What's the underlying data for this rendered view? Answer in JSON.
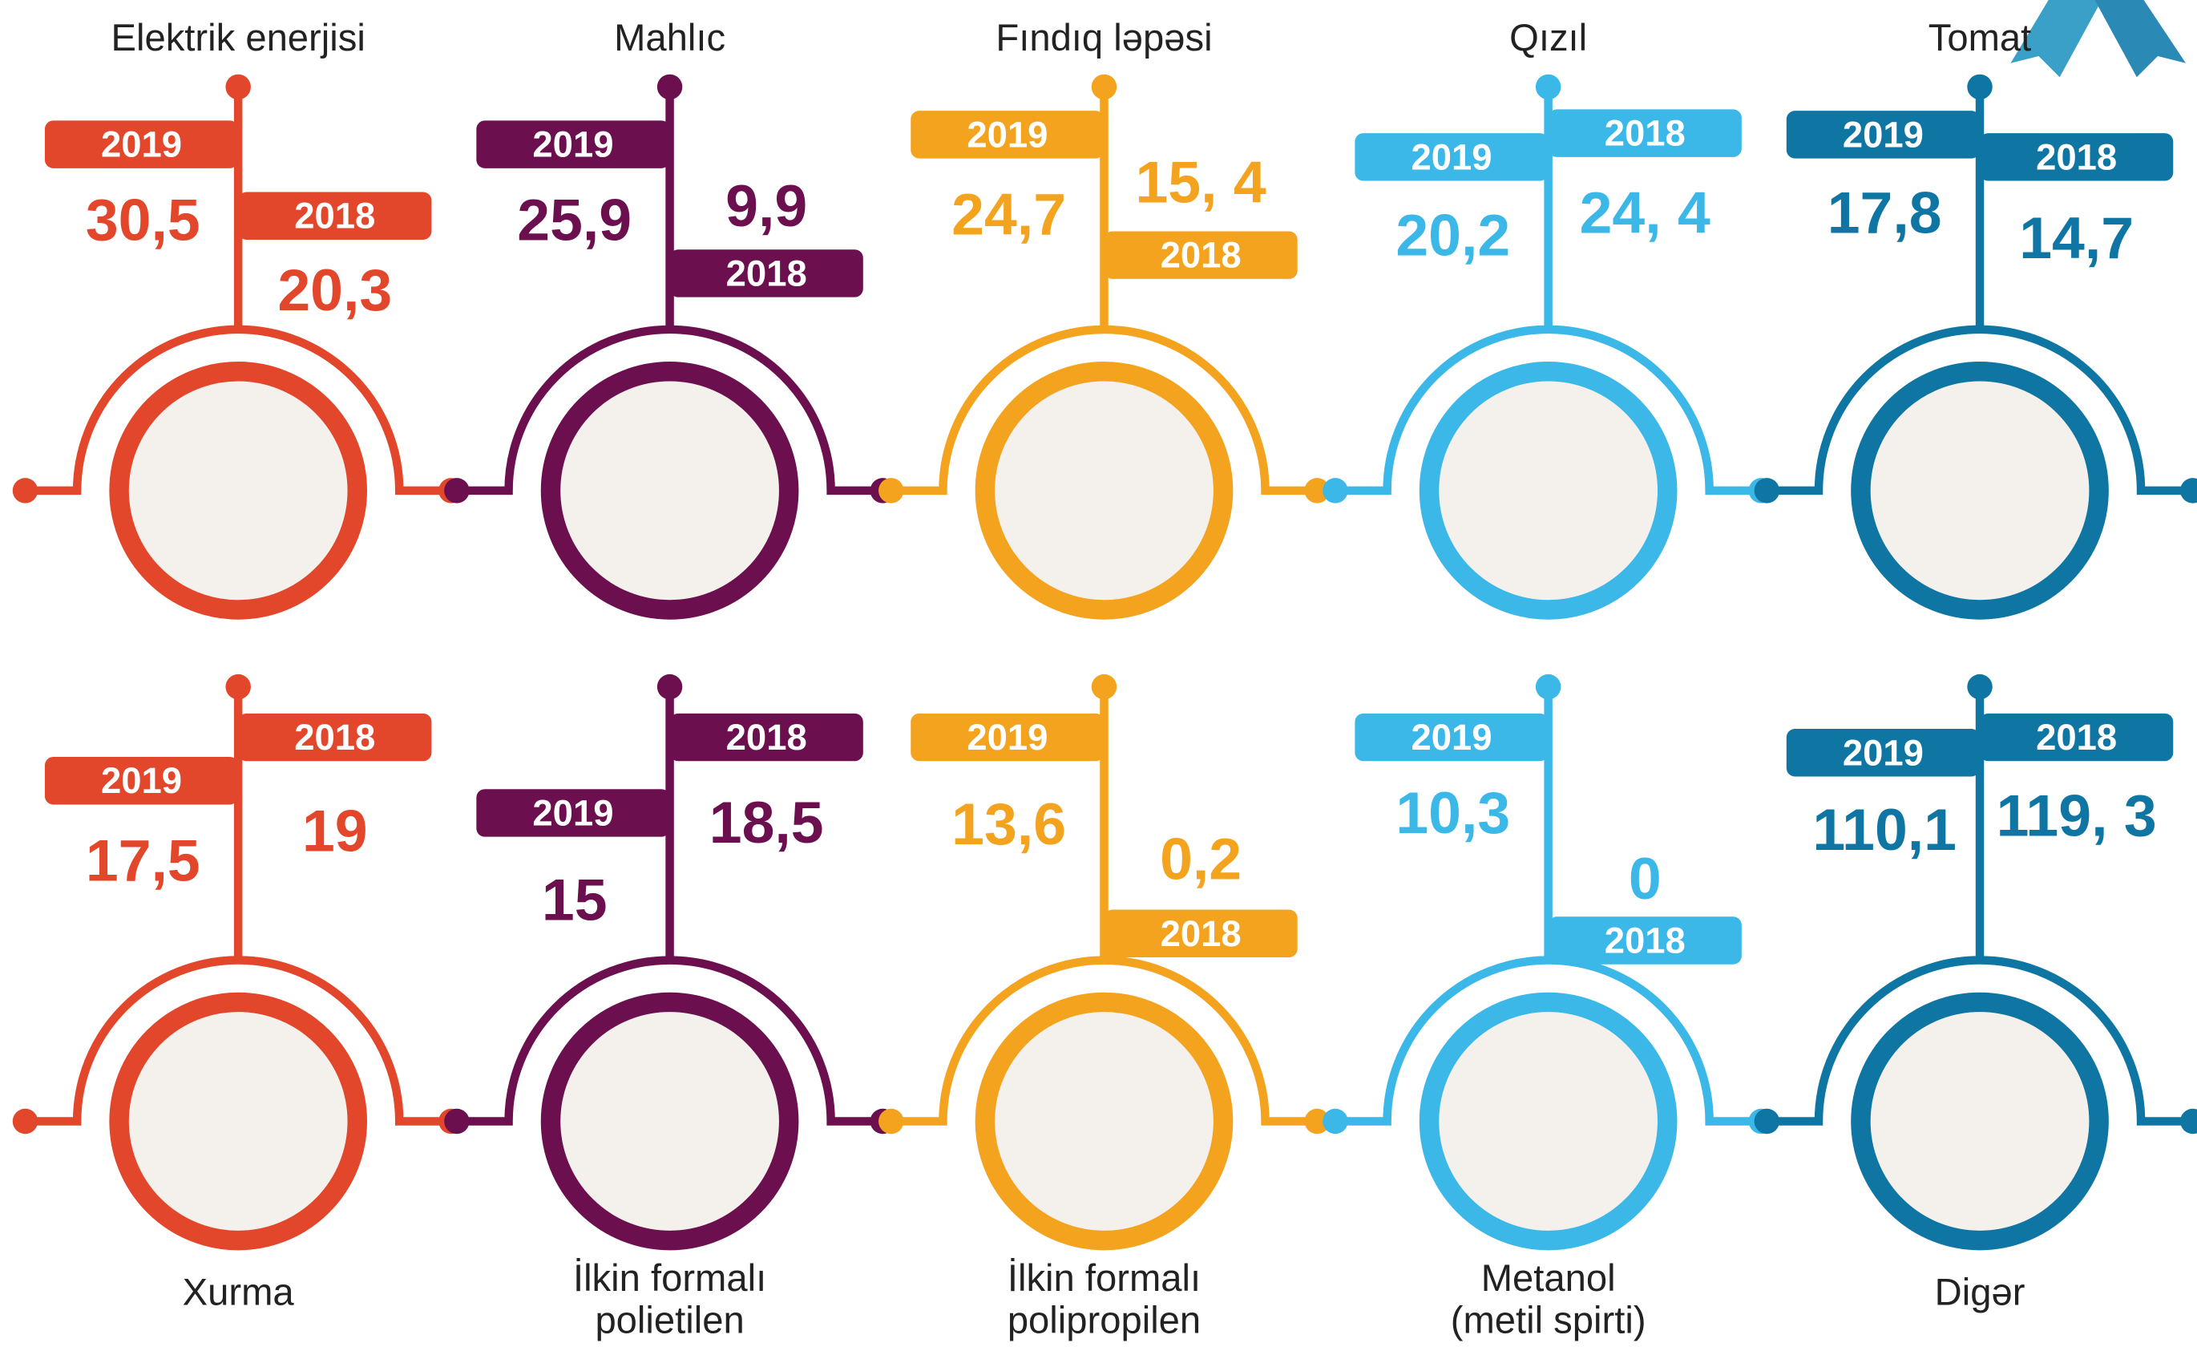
{
  "years": {
    "current": "2019",
    "previous": "2018"
  },
  "items": [
    {
      "label": [
        "Elektrik enerjisi"
      ],
      "color": "#e2462b",
      "v2019": "30,5",
      "v2018": "20,3"
    },
    {
      "label": [
        "Mahlıc"
      ],
      "color": "#6b0f4e",
      "v2019": "25,9",
      "v2018": "9,9"
    },
    {
      "label": [
        "Fındıq ləpəsi"
      ],
      "color": "#f4a31f",
      "v2019": "24,7",
      "v2018": "15, 4"
    },
    {
      "label": [
        "Qızıl"
      ],
      "color": "#3bb7e8",
      "v2019": "20,2",
      "v2018": "24, 4"
    },
    {
      "label": [
        "Tomat"
      ],
      "color": "#0f76a3",
      "v2019": "17,8",
      "v2018": "14,7"
    },
    {
      "label": [
        "Xurma"
      ],
      "color": "#e2462b",
      "v2019": "17,5",
      "v2018": "19"
    },
    {
      "label": [
        "İlkin formalı",
        "polietilen"
      ],
      "color": "#6b0f4e",
      "v2019": "15",
      "v2018": "18,5"
    },
    {
      "label": [
        "İlkin formalı",
        "polipropilen"
      ],
      "color": "#f4a31f",
      "v2019": "13,6",
      "v2018": "0,2"
    },
    {
      "label": [
        "Metanol",
        "(metil spirti)"
      ],
      "color": "#3bb7e8",
      "v2019": "10,3",
      "v2018": "0"
    },
    {
      "label": [
        "Digər"
      ],
      "color": "#0f76a3",
      "v2019": "110,1",
      "v2018": "119, 3"
    }
  ]
}
